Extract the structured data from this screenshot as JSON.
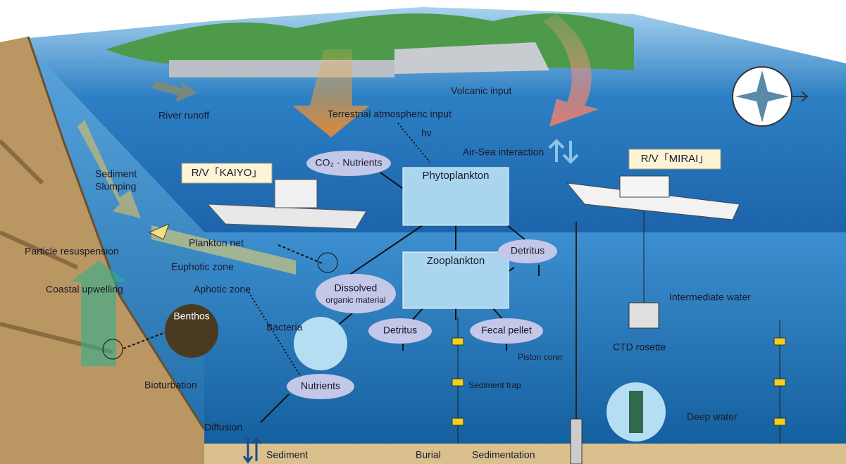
{
  "labels": {
    "volcanic_input": "Volcanic input",
    "river_runoff": "River runoff",
    "terrestrial_input": "Terrestrial atmospheric input",
    "h_nu": "hν",
    "air_sea": "Air-Sea interaction",
    "mirai": "R/V「MIRAI」",
    "kaiyo": "R/V「KAIYO」",
    "sediment_slumping_1": "Sediment",
    "sediment_slumping_2": "Slumping",
    "co2_nutrients": "CO₂ · Nutrients",
    "phytoplankton": "Phytoplankton",
    "plankton_net": "Plankton net",
    "particle_resuspension": "Particle resuspension",
    "euphotic_zone": "Euphotic zone",
    "detritus_upper": "Detritus",
    "zooplankton": "Zooplankton",
    "aphotic_zone": "Aphotic zone",
    "coastal_upwelling": "Coastal upwelling",
    "dissolved_1": "Dissolved",
    "dissolved_2": "organic material",
    "intermediate_water": "Intermediate water",
    "benthos": "Benthos",
    "bacteria": "Bacteria",
    "detritus_lower": "Detritus",
    "fecal_pellet": "Fecal pellet",
    "ctd_rosette": "CTD rosette",
    "piston_corer": "Piston corer",
    "sediment_trap": "Sediment trap",
    "nutrients": "Nutrients",
    "bioturbation": "Bioturbation",
    "deep_water": "Deep water",
    "diffusion": "Diffusion",
    "sediment": "Sediment",
    "burial": "Burial",
    "sedimentation": "Sedimentation"
  }
}
